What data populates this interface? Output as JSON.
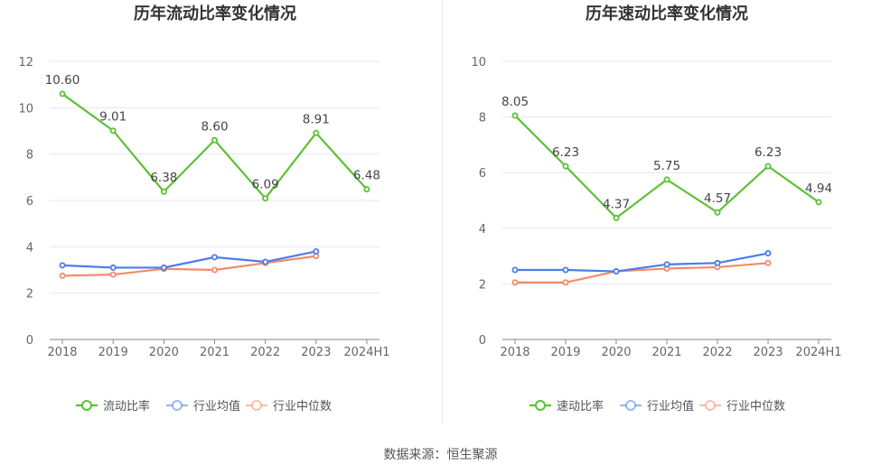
{
  "source_text": "数据来源：恒生聚源",
  "colors": {
    "green": "#5bc234",
    "blue": "#4a7de8",
    "orange": "#f58a6a",
    "axis": "#888888",
    "grid": "#e3e7f0",
    "text": "#333333"
  },
  "chart_data": [
    {
      "type": "line",
      "title": "历年流动比率变化情况",
      "categories": [
        "2018",
        "2019",
        "2020",
        "2021",
        "2022",
        "2023",
        "2024H1"
      ],
      "ylim": [
        0,
        12
      ],
      "yticks": [
        "0",
        "2",
        "4",
        "6",
        "8",
        "10",
        "12"
      ],
      "grid": true,
      "legend_position": "bottom",
      "series": [
        {
          "name": "流动比率",
          "values": [
            10.6,
            9.01,
            6.38,
            8.6,
            6.09,
            8.91,
            6.48
          ],
          "labels": [
            "10.60",
            "9.01",
            "6.38",
            "8.60",
            "6.09",
            "8.91",
            "6.48"
          ],
          "color": "green"
        },
        {
          "name": "行业均值",
          "values": [
            3.2,
            3.1,
            3.1,
            3.55,
            3.35,
            3.8,
            null
          ],
          "color": "blue"
        },
        {
          "name": "行业中位数",
          "values": [
            2.75,
            2.8,
            3.05,
            3.0,
            3.3,
            3.6,
            null
          ],
          "color": "orange"
        }
      ]
    },
    {
      "type": "line",
      "title": "历年速动比率变化情况",
      "categories": [
        "2018",
        "2019",
        "2020",
        "2021",
        "2022",
        "2023",
        "2024H1"
      ],
      "ylim": [
        0,
        10
      ],
      "yticks": [
        "0",
        "2",
        "4",
        "6",
        "8",
        "10"
      ],
      "grid": true,
      "legend_position": "bottom",
      "series": [
        {
          "name": "速动比率",
          "values": [
            8.05,
            6.23,
            4.37,
            5.75,
            4.57,
            6.23,
            4.94
          ],
          "labels": [
            "8.05",
            "6.23",
            "4.37",
            "5.75",
            "4.57",
            "6.23",
            "4.94"
          ],
          "color": "green"
        },
        {
          "name": "行业均值",
          "values": [
            2.5,
            2.5,
            2.45,
            2.7,
            2.75,
            3.1,
            null
          ],
          "color": "blue"
        },
        {
          "name": "行业中位数",
          "values": [
            2.05,
            2.05,
            2.45,
            2.55,
            2.6,
            2.75,
            null
          ],
          "color": "orange"
        }
      ]
    }
  ]
}
